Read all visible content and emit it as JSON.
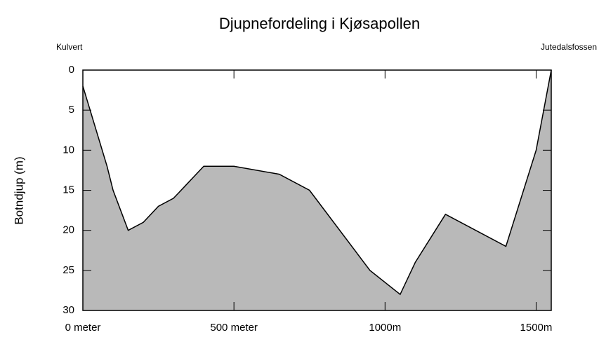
{
  "chart_data": {
    "type": "area",
    "title": "Djupnefordeling i Kjøsapollen",
    "y_label": "Botndjup (m)",
    "annotations": [
      "Kulvert",
      "Jutedalsfossen"
    ],
    "x": [
      0,
      80,
      100,
      150,
      200,
      250,
      300,
      350,
      400,
      500,
      650,
      750,
      950,
      1050,
      1100,
      1200,
      1400,
      1500,
      1550
    ],
    "values": [
      2,
      12,
      15,
      20,
      19,
      17,
      16,
      14,
      12,
      12,
      13,
      15,
      25,
      28,
      24,
      18,
      22,
      10,
      0
    ],
    "color": "#b9b9b9",
    "xlim": [
      0,
      1550
    ],
    "xticks": [
      {
        "value": 0,
        "label": "0 meter"
      },
      {
        "value": 500,
        "label": "500 meter"
      },
      {
        "value": 1000,
        "label": "1000m"
      },
      {
        "value": 1500,
        "label": "1500m"
      }
    ],
    "ylim": [
      0,
      30
    ],
    "yticks": [
      0,
      5,
      10,
      15,
      20,
      25,
      30
    ],
    "y_inverted": true
  }
}
